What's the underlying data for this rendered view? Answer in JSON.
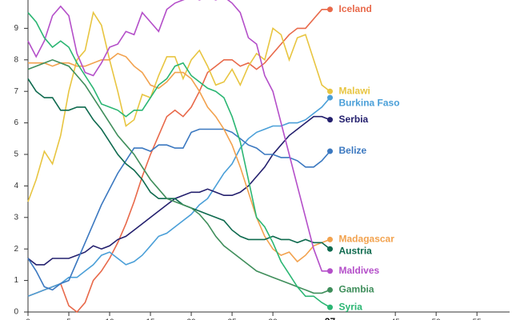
{
  "chart_data": {
    "type": "line",
    "x": [
      0,
      1,
      2,
      3,
      4,
      5,
      6,
      7,
      8,
      9,
      10,
      11,
      12,
      13,
      14,
      15,
      16,
      17,
      18,
      19,
      20,
      21,
      22,
      23,
      24,
      25,
      26,
      27,
      28,
      29,
      30,
      31,
      32,
      33,
      34,
      35,
      36,
      37
    ],
    "xlim": [
      0,
      59
    ],
    "ylim": [
      0,
      10
    ],
    "xticks": [
      0,
      5,
      10,
      15,
      20,
      25,
      30,
      35,
      40,
      45,
      50,
      55
    ],
    "yticks": [
      0,
      1,
      2,
      3,
      4,
      5,
      6,
      7,
      8,
      9
    ],
    "cursor_x": 37,
    "series": [
      {
        "name": "Iceland",
        "color": "#e8694a",
        "values": [
          0.5,
          0.6,
          0.7,
          0.8,
          0.9,
          0.2,
          0,
          0.3,
          1.0,
          1.3,
          1.7,
          2.2,
          2.8,
          3.5,
          4.3,
          5.0,
          5.6,
          6.2,
          6.4,
          6.2,
          6.5,
          7.0,
          7.6,
          7.8,
          8.0,
          8.0,
          7.8,
          7.9,
          7.7,
          7.9,
          8.2,
          8.5,
          8.8,
          9.0,
          9.0,
          9.3,
          9.6,
          9.6
        ]
      },
      {
        "name": "Malawi",
        "color": "#e8c541",
        "values": [
          3.5,
          4.2,
          5.1,
          4.7,
          5.6,
          7.0,
          8.0,
          8.3,
          9.5,
          9.1,
          8.0,
          7.0,
          5.9,
          6.1,
          6.9,
          6.8,
          7.5,
          8.1,
          8.1,
          7.4,
          8.0,
          8.3,
          7.8,
          7.2,
          7.3,
          7.7,
          7.2,
          7.8,
          8.2,
          8.0,
          9.0,
          8.8,
          8.0,
          8.7,
          8.8,
          8.0,
          7.2,
          7.0
        ]
      },
      {
        "name": "Burkina Faso",
        "color": "#4a9fd8",
        "values": [
          0.5,
          0.6,
          0.7,
          0.8,
          0.9,
          1.1,
          1.1,
          1.3,
          1.5,
          1.8,
          1.9,
          1.7,
          1.5,
          1.6,
          1.8,
          2.1,
          2.4,
          2.5,
          2.7,
          2.9,
          3.1,
          3.4,
          3.6,
          4.0,
          4.4,
          4.7,
          5.2,
          5.5,
          5.7,
          5.8,
          5.9,
          5.9,
          6.0,
          6.0,
          6.1,
          6.3,
          6.5,
          6.8
        ]
      },
      {
        "name": "Serbia",
        "color": "#24206e",
        "values": [
          1.7,
          1.5,
          1.5,
          1.7,
          1.7,
          1.7,
          1.8,
          1.9,
          2.1,
          2.0,
          2.1,
          2.3,
          2.4,
          2.6,
          2.8,
          3.0,
          3.2,
          3.4,
          3.6,
          3.7,
          3.8,
          3.8,
          3.9,
          3.8,
          3.7,
          3.7,
          3.8,
          4.0,
          4.3,
          4.6,
          5.0,
          5.3,
          5.6,
          5.8,
          6.0,
          6.2,
          6.2,
          6.1
        ]
      },
      {
        "name": "Belize",
        "color": "#3b78c0",
        "values": [
          1.7,
          1.3,
          0.8,
          0.7,
          0.9,
          1.0,
          1.6,
          2.2,
          2.8,
          3.4,
          3.9,
          4.4,
          4.8,
          5.2,
          5.2,
          5.1,
          5.3,
          5.3,
          5.2,
          5.2,
          5.7,
          5.8,
          5.8,
          5.8,
          5.8,
          5.7,
          5.5,
          5.3,
          5.2,
          5.0,
          5.0,
          4.9,
          4.9,
          4.8,
          4.6,
          4.6,
          4.8,
          5.1
        ]
      },
      {
        "name": "Madagascar",
        "color": "#f2a24e",
        "values": [
          7.9,
          7.9,
          7.9,
          7.8,
          7.9,
          7.9,
          7.8,
          7.8,
          7.9,
          8.0,
          8.0,
          8.2,
          8.1,
          7.8,
          7.6,
          7.2,
          7.1,
          7.3,
          7.6,
          7.6,
          7.4,
          7.0,
          6.5,
          6.2,
          5.8,
          5.3,
          4.6,
          3.8,
          3.0,
          2.4,
          2.0,
          1.8,
          1.9,
          1.6,
          1.8,
          2.1,
          2.2,
          2.3
        ]
      },
      {
        "name": "Austria",
        "color": "#0e6a4e",
        "values": [
          7.4,
          7.0,
          6.8,
          6.8,
          6.4,
          6.4,
          6.5,
          6.5,
          6.1,
          5.8,
          5.4,
          5.0,
          4.7,
          4.5,
          4.2,
          3.8,
          3.6,
          3.6,
          3.6,
          3.4,
          3.3,
          3.2,
          3.1,
          3.0,
          2.9,
          2.6,
          2.4,
          2.3,
          2.3,
          2.3,
          2.4,
          2.3,
          2.3,
          2.2,
          2.3,
          2.2,
          2.2,
          2.0
        ]
      },
      {
        "name": "Maldives",
        "color": "#b44fc9",
        "values": [
          8.6,
          8.1,
          8.6,
          9.4,
          9.7,
          9.4,
          8.2,
          7.6,
          7.5,
          7.9,
          8.4,
          8.5,
          8.9,
          8.8,
          9.5,
          9.2,
          8.9,
          9.6,
          9.8,
          9.9,
          10,
          9.9,
          10,
          9.9,
          10,
          9.8,
          9.5,
          8.7,
          8.5,
          7.5,
          7.0,
          6.0,
          5.0,
          4.0,
          3.0,
          2.0,
          1.3,
          1.3
        ]
      },
      {
        "name": "Gambia",
        "color": "#3f8e5b",
        "values": [
          7.7,
          7.8,
          7.9,
          8.0,
          7.9,
          7.8,
          7.5,
          7.2,
          6.8,
          6.4,
          6.0,
          5.6,
          5.3,
          5.0,
          4.6,
          4.2,
          3.9,
          3.6,
          3.5,
          3.4,
          3.3,
          3.1,
          2.8,
          2.4,
          2.1,
          1.9,
          1.7,
          1.5,
          1.3,
          1.2,
          1.1,
          1.0,
          0.9,
          0.8,
          0.7,
          0.6,
          0.6,
          0.7
        ]
      },
      {
        "name": "Syria",
        "color": "#2bb673",
        "values": [
          9.5,
          9.2,
          8.7,
          8.4,
          8.6,
          8.4,
          7.9,
          7.5,
          7.1,
          6.6,
          6.5,
          6.4,
          6.2,
          6.4,
          6.4,
          6.8,
          7.2,
          7.4,
          7.8,
          7.9,
          7.5,
          7.3,
          7.1,
          7.0,
          6.8,
          6.2,
          5.4,
          4.2,
          3.0,
          2.7,
          2.2,
          1.6,
          1.2,
          0.8,
          0.5,
          0.5,
          0.3,
          0.15
        ]
      }
    ]
  }
}
